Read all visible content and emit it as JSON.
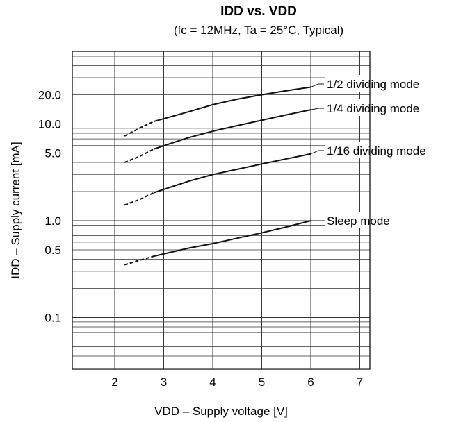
{
  "chart_data": {
    "type": "line",
    "title": "IDD vs. VDD",
    "subtitle": "(fc = 12MHz, Ta = 25°C, Typical)",
    "xlabel": "VDD – Supply voltage [V]",
    "ylabel": "IDD – Supply current [mA]",
    "x_ticks": [
      "2",
      "3",
      "4",
      "5",
      "6",
      "7"
    ],
    "y_ticks": [
      {
        "value": 0.1,
        "label": "0.1"
      },
      {
        "value": 0.5,
        "label": "0.5"
      },
      {
        "value": 1.0,
        "label": "1.0"
      },
      {
        "value": 5.0,
        "label": "5.0"
      },
      {
        "value": 10.0,
        "label": "10.0"
      },
      {
        "value": 20.0,
        "label": "20.0"
      }
    ],
    "xlim": [
      1.2,
      7.6
    ],
    "ylim": [
      0.02,
      50
    ],
    "y_scale": "log",
    "grid": true,
    "legend": "labels at line ends, right",
    "series": [
      {
        "name": "1/2 dividing mode",
        "x": [
          2.2,
          2.5,
          2.8,
          3.5,
          4.0,
          4.5,
          5.0,
          5.5,
          6.0
        ],
        "y": [
          7.5,
          9.0,
          10.6,
          13.3,
          15.8,
          18.0,
          20.0,
          22.0,
          24.0
        ]
      },
      {
        "name": "1/4 dividing mode",
        "x": [
          2.2,
          2.5,
          2.8,
          3.5,
          4.0,
          4.5,
          5.0,
          5.5,
          6.0
        ],
        "y": [
          4.0,
          4.6,
          5.5,
          7.2,
          8.4,
          9.6,
          10.9,
          12.4,
          14.0
        ]
      },
      {
        "name": "1/16 dividing mode",
        "x": [
          2.2,
          2.5,
          2.8,
          3.5,
          4.0,
          4.5,
          5.0,
          5.5,
          6.0
        ],
        "y": [
          1.45,
          1.65,
          1.95,
          2.55,
          3.0,
          3.4,
          3.85,
          4.35,
          4.9
        ]
      },
      {
        "name": "Sleep mode",
        "x": [
          2.2,
          2.5,
          2.8,
          3.5,
          4.0,
          4.5,
          5.0,
          5.5,
          6.0
        ],
        "y": [
          0.35,
          0.39,
          0.43,
          0.52,
          0.58,
          0.66,
          0.75,
          0.86,
          1.0
        ]
      }
    ]
  }
}
